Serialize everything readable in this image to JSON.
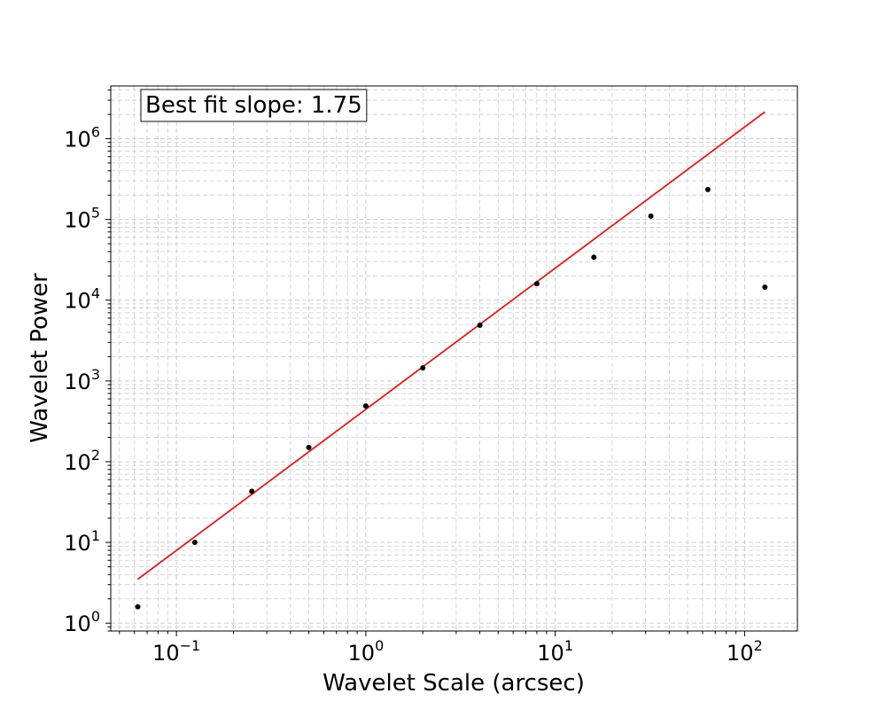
{
  "chart_data": {
    "type": "scatter",
    "title": "",
    "xlabel": "Wavelet Scale (arcsec)",
    "ylabel": "Wavelet Power",
    "xscale": "log",
    "yscale": "log",
    "xlim": [
      0.045,
      190
    ],
    "ylim": [
      0.8,
      4500000
    ],
    "grid": true,
    "x_ticks": [
      {
        "value": 0.1,
        "base": "10",
        "exp": "−1"
      },
      {
        "value": 1,
        "base": "10",
        "exp": "0"
      },
      {
        "value": 10,
        "base": "10",
        "exp": "1"
      },
      {
        "value": 100,
        "base": "10",
        "exp": "2"
      }
    ],
    "y_ticks": [
      {
        "value": 1,
        "base": "10",
        "exp": "0"
      },
      {
        "value": 10,
        "base": "10",
        "exp": "1"
      },
      {
        "value": 100,
        "base": "10",
        "exp": "2"
      },
      {
        "value": 1000,
        "base": "10",
        "exp": "3"
      },
      {
        "value": 10000,
        "base": "10",
        "exp": "4"
      },
      {
        "value": 100000,
        "base": "10",
        "exp": "5"
      },
      {
        "value": 1000000,
        "base": "10",
        "exp": "6"
      }
    ],
    "points": {
      "color": "#000000",
      "x": [
        0.0625,
        0.125,
        0.25,
        0.5,
        1,
        2,
        4,
        8,
        16,
        32,
        64,
        128
      ],
      "y": [
        1.6,
        10,
        43,
        150,
        490,
        1450,
        4900,
        16000,
        34000,
        110000,
        235000,
        14500
      ]
    },
    "fit_line": {
      "color": "#e31a1c",
      "x": [
        0.0625,
        128
      ],
      "y": [
        3.5,
        2150000
      ]
    },
    "annotation": {
      "text": "Best fit slope: 1.75",
      "position": "top-left"
    }
  }
}
